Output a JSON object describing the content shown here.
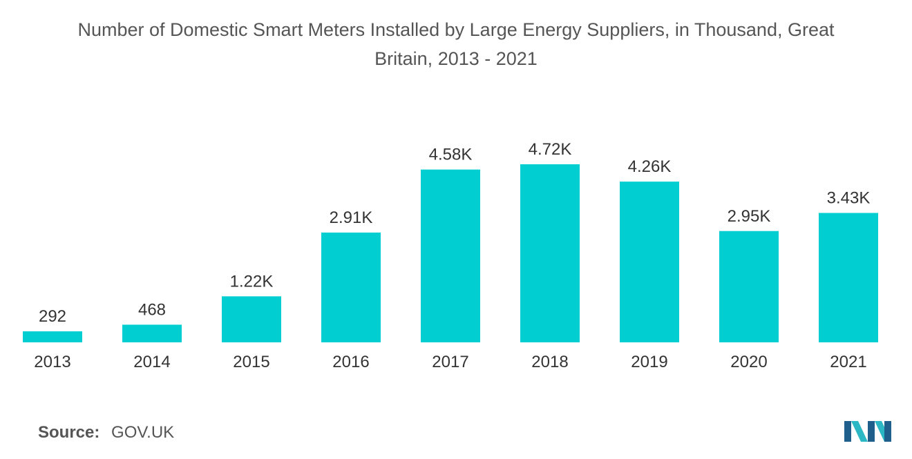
{
  "title_line1": "Number of Domestic Smart Meters Installed by Large Energy Suppliers, in Thousand, Great",
  "title_line2": "Britain, 2013 - 2021",
  "source": {
    "label": "Source:",
    "value": "GOV.UK"
  },
  "logo_icon": "mordor-intelligence-logo-icon",
  "colors": {
    "bar": "#00CED1",
    "text": "#333333",
    "title": "#555555"
  },
  "chart_data": {
    "type": "bar",
    "title": "Number of Domestic Smart Meters Installed by Large Energy Suppliers, in Thousand, Great Britain, 2013 - 2021",
    "categories": [
      "2013",
      "2014",
      "2015",
      "2016",
      "2017",
      "2018",
      "2019",
      "2020",
      "2021"
    ],
    "values": [
      292,
      468,
      1220,
      2910,
      4580,
      4720,
      4260,
      2950,
      3430
    ],
    "value_labels": [
      "292",
      "468",
      "1.22K",
      "2.91K",
      "4.58K",
      "4.72K",
      "4.26K",
      "2.95K",
      "3.43K"
    ],
    "xlabel": "",
    "ylabel": "",
    "ylim": [
      0,
      4720
    ],
    "grid": false,
    "legend": "none"
  }
}
